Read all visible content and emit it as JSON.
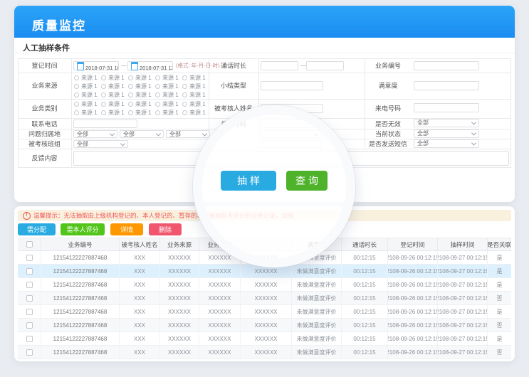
{
  "header": {
    "title": "质量监控"
  },
  "section": {
    "title": "人工抽样条件"
  },
  "form": {
    "registration_time": {
      "label": "登记时间",
      "from": "2018-07-31 10",
      "to": "2018-07-31 12",
      "separator": "—",
      "format_hint": "(格式: 年-月-日-时)"
    },
    "call_duration": {
      "label": "通话时长",
      "separator": "—"
    },
    "business_no": {
      "label": "业务编号"
    },
    "business_source": {
      "label": "业务来源",
      "option_label": "来源 1",
      "option_count": 15
    },
    "summary_type": {
      "label": "小结类型"
    },
    "satisfaction": {
      "label": "满意度"
    },
    "business_category": {
      "label": "业务类别",
      "option_label": "来源 1",
      "option_count": 10
    },
    "assessee_name": {
      "label": "被考核人姓名"
    },
    "caller_number": {
      "label": "来电号码"
    },
    "contact_phone": {
      "label": "联系电话"
    },
    "switchboard_number": {
      "label": "总机号码"
    },
    "is_invalid": {
      "label": "是否无效",
      "value": "全部"
    },
    "problem_region": {
      "label": "问题归属地",
      "values": [
        "全部",
        "全部",
        "全部"
      ]
    },
    "current_status": {
      "label": "当前状态",
      "value": "全部"
    },
    "assessed_team": {
      "label": "被考核班组",
      "value": "全部"
    },
    "send_sms": {
      "label": "是否发送短信",
      "value": "全部"
    },
    "feedback": {
      "label": "反馈内容"
    }
  },
  "buttons": {
    "sample": "抽样",
    "query": "查询"
  },
  "notice": {
    "icon": "!",
    "text": "温馨提示：无法抽取由上级机构登记的、本人登记的、暂存的、已被抽取未评分的业务记录，如果"
  },
  "actions": {
    "assign": "需分配",
    "self_score": "需本人评分",
    "detail": "详情",
    "delete": "删除"
  },
  "table": {
    "columns": [
      "业务编号",
      "被考核人姓名",
      "业务来源",
      "业务类别",
      "",
      "满意度",
      "通话时长",
      "登记时间",
      "抽样时间",
      "是否关联"
    ],
    "rows": [
      [
        "12154122227887468",
        "XXX",
        "XXXXXX",
        "XXXXXX",
        "XXXXXX",
        "未做满意度评价",
        "00:12:15",
        "2108-09-26 00:12:15",
        "2108-09-27 00:12:15",
        "是"
      ],
      [
        "12154122227887468",
        "XXX",
        "XXXXXX",
        "XXXXXX",
        "XXXXXX",
        "未做满意度评价",
        "00:12:15",
        "2108-09-26 00:12:15",
        "2108-09-27 00:12:15",
        "是"
      ],
      [
        "12154122227887468",
        "XXX",
        "XXXXXX",
        "XXXXXX",
        "XXXXXX",
        "未做满意度评价",
        "00:12:15",
        "2108-09-26 00:12:15",
        "2108-09-27 00:12:15",
        "是"
      ],
      [
        "12154122227887468",
        "XXX",
        "XXXXXX",
        "XXXXXX",
        "XXXXXX",
        "未做满意度评价",
        "00:12:15",
        "2108-09-26 00:12:15",
        "2108-09-27 00:12:15",
        "否"
      ],
      [
        "12154122227887468",
        "XXX",
        "XXXXXX",
        "XXXXXX",
        "XXXXXX",
        "未做满意度评价",
        "00:12:15",
        "2108-09-26 00:12:15",
        "2108-09-27 00:12:15",
        "是"
      ],
      [
        "12154122227887468",
        "XXX",
        "XXXXXX",
        "XXXXXX",
        "XXXXXX",
        "未做满意度评价",
        "00:12:15",
        "2108-09-26 00:12:15",
        "2108-09-27 00:12:15",
        "否"
      ],
      [
        "12154122227887468",
        "XXX",
        "XXXXXX",
        "XXXXXX",
        "XXXXXX",
        "未做满意度评价",
        "00:12:15",
        "2108-09-26 00:12:15",
        "2108-09-27 00:12:15",
        "是"
      ],
      [
        "12154122227887468",
        "XXX",
        "XXXXXX",
        "XXXXXX",
        "XXXXXX",
        "未做满意度评价",
        "00:12:15",
        "2108-09-26 00:12:15",
        "2108-09-27 00:12:15",
        "否"
      ]
    ]
  },
  "colors": {
    "header_blue": "#1f97f4",
    "accent_blue": "#29abe2",
    "green": "#4eb22a",
    "bright_green": "#52c41a",
    "orange": "#ff9800",
    "pink_red": "#f0566e",
    "warning_red": "#f25454",
    "warning_bg": "#f9f1de",
    "row_highlight": "#ddf0fd"
  }
}
